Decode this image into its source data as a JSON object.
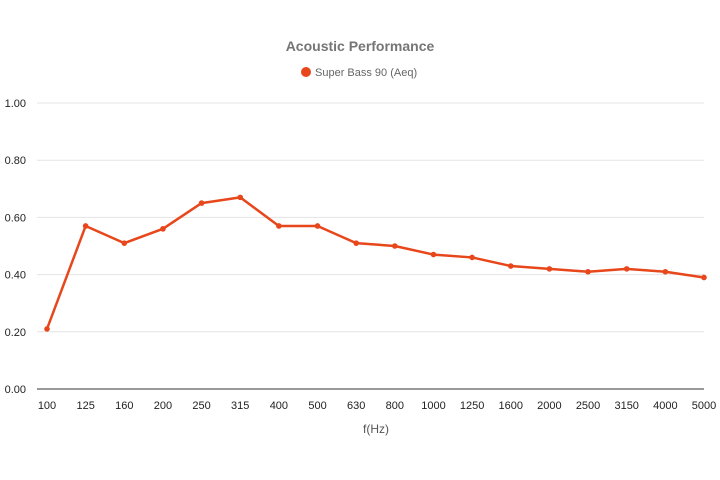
{
  "chart_data": {
    "type": "line",
    "title": "Acoustic Performance",
    "xlabel": "f(Hz)",
    "ylabel": "",
    "categories": [
      "100",
      "125",
      "160",
      "200",
      "250",
      "315",
      "400",
      "500",
      "630",
      "800",
      "1000",
      "1250",
      "1600",
      "2000",
      "2500",
      "3150",
      "4000",
      "5000"
    ],
    "series": [
      {
        "name": "Super Bass 90 (Aeq)",
        "color": "#e8461b",
        "values": [
          0.21,
          0.57,
          0.51,
          0.56,
          0.65,
          0.67,
          0.57,
          0.57,
          0.51,
          0.5,
          0.47,
          0.46,
          0.43,
          0.42,
          0.41,
          0.42,
          0.41,
          0.39
        ]
      }
    ],
    "ylim": [
      0,
      1
    ],
    "yticks": [
      "0.00",
      "0.20",
      "0.40",
      "0.60",
      "0.80",
      "1.00"
    ],
    "ytick_values": [
      0,
      0.2,
      0.4,
      0.6,
      0.8,
      1.0
    ],
    "grid": true,
    "legend_position": "top-center"
  }
}
